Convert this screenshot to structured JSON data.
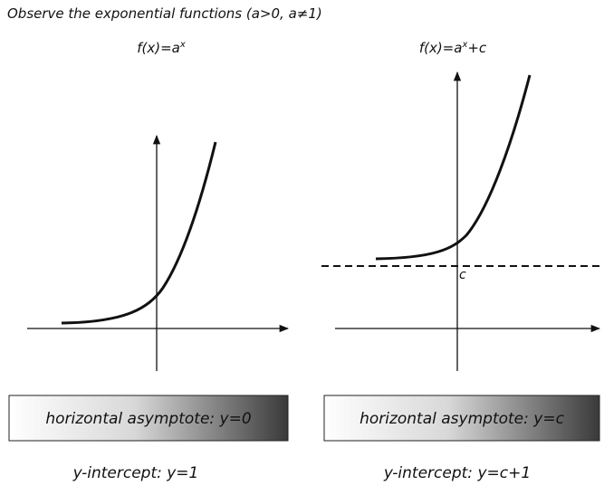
{
  "title": "Observe the exponential functions (a>0, a≠1)",
  "panels": [
    {
      "function": {
        "base": "f(x)=a",
        "exponent": "x"
      },
      "asymptote": "horizontal asymptote:  y=0",
      "intercept": "y-intercept:  y=1"
    },
    {
      "function": {
        "base": "f(x)=a",
        "exponent": "x",
        "tail": "+c"
      },
      "asymptote_marker": "c",
      "asymptote": "horizontal asymptote:  y=c",
      "intercept": "y-intercept:  y=c+1"
    }
  ]
}
